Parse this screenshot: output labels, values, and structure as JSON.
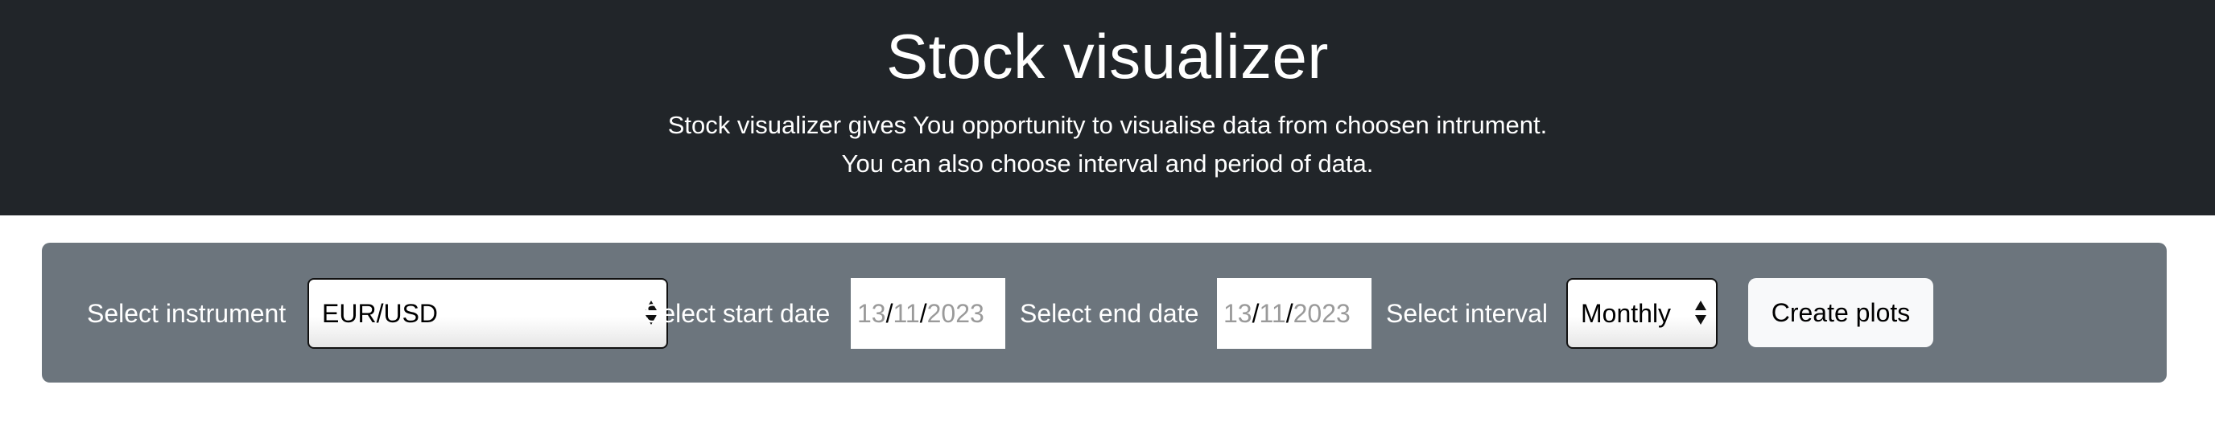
{
  "header": {
    "title": "Stock visualizer",
    "description_line1": "Stock visualizer gives You opportunity to visualise data from choosen intrument.",
    "description_line2": "You can also choose interval and period of data."
  },
  "form": {
    "instrument_label": "Select instrument",
    "instrument_value": "EUR/USD",
    "start_label": "Select start date",
    "start_date": {
      "day": "13",
      "month": "11",
      "year": "2023"
    },
    "end_label": "Select end date",
    "end_date": {
      "day": "13",
      "month": "11",
      "year": "2023"
    },
    "interval_label": "Select interval",
    "interval_value": "Monthly",
    "submit_label": "Create plots"
  },
  "colors": {
    "header_bg": "#212529",
    "toolbar_bg": "#6c757d",
    "button_bg": "#f8f9fa"
  }
}
